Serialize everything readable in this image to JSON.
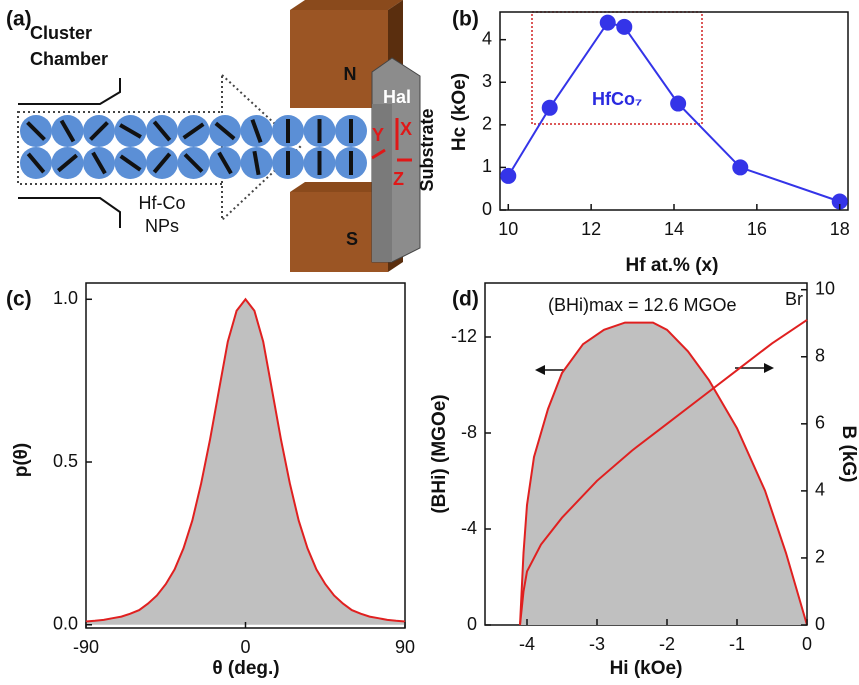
{
  "diagram": {
    "panel": "(a)",
    "chamber": [
      "Cluster",
      "Chamber"
    ],
    "particles": [
      "Hf-Co",
      "NPs"
    ],
    "magnets": [
      "N",
      "S"
    ],
    "substrate": "Substrate",
    "field": "Hal",
    "axes": [
      "X",
      "Y",
      "Z"
    ]
  },
  "chart_data": [
    {
      "panel": "(b)",
      "type": "line",
      "xlabel": "Hf at.% (x)",
      "ylabel": "Hc (kOe)",
      "annotation": "HfCo₇",
      "x": [
        10,
        11,
        12.4,
        12.8,
        14.1,
        15.6,
        18
      ],
      "series": [
        {
          "color": "#3434e8",
          "marker": "circle",
          "values": [
            0.8,
            2.4,
            4.4,
            4.3,
            2.5,
            1.0,
            0.2
          ]
        }
      ],
      "xlim": [
        9.8,
        18.2
      ],
      "ylim": [
        0,
        4.65
      ],
      "xticks": [
        10,
        12,
        14,
        16,
        18
      ],
      "yticks": [
        0,
        1,
        2,
        3,
        4
      ]
    },
    {
      "panel": "(c)",
      "type": "area",
      "xlabel": "θ (deg.)",
      "ylabel": "p(θ)",
      "x": [
        -90,
        -85,
        -80,
        -75,
        -70,
        -65,
        -60,
        -55,
        -50,
        -45,
        -40,
        -35,
        -30,
        -25,
        -20,
        -15,
        -10,
        -5,
        0,
        5,
        10,
        15,
        20,
        25,
        30,
        35,
        40,
        45,
        50,
        55,
        60,
        65,
        70,
        75,
        80,
        85,
        90
      ],
      "series": [
        {
          "color": "#e02020",
          "fill": "#c0c0c0",
          "values": [
            0.01,
            0.012,
            0.015,
            0.02,
            0.025,
            0.034,
            0.045,
            0.065,
            0.09,
            0.125,
            0.17,
            0.235,
            0.32,
            0.435,
            0.57,
            0.72,
            0.87,
            0.965,
            1.0,
            0.965,
            0.87,
            0.72,
            0.57,
            0.435,
            0.32,
            0.235,
            0.17,
            0.125,
            0.09,
            0.065,
            0.045,
            0.034,
            0.025,
            0.02,
            0.015,
            0.012,
            0.01
          ]
        }
      ],
      "xlim": [
        -90,
        90
      ],
      "ylim": [
        -0.01,
        1.05
      ],
      "xticks": [
        -90,
        0,
        90
      ],
      "yticks": [
        {
          "value": 0,
          "label": "0.0"
        },
        {
          "value": 0.5,
          "label": "0.5"
        },
        {
          "value": 1,
          "label": "1.0"
        }
      ]
    },
    {
      "panel": "(d)",
      "type": "line",
      "xlabel": "Hi (kOe)",
      "ylabel": "(BHi) (MGOe)",
      "y2label": "B (kG)",
      "annotation": "(BHi)max = 12.6 MGOe",
      "note": "Br",
      "series": [
        {
          "color": "#e02020",
          "fill": "#c0c0c0",
          "x": [
            -4.1,
            -4.05,
            -4.0,
            -3.9,
            -3.7,
            -3.5,
            -3.2,
            -2.9,
            -2.6,
            -2.2,
            -2.0,
            -1.7,
            -1.4,
            -1.0,
            -0.6,
            -0.3,
            0
          ],
          "values": [
            0,
            -3,
            -5,
            -7,
            -9,
            -10.5,
            -11.7,
            -12.3,
            -12.6,
            -12.6,
            -12.3,
            -11.4,
            -10.2,
            -8.2,
            -5.6,
            -3.0,
            0
          ]
        },
        {
          "color": "#e02020",
          "axis": "y2",
          "x": [
            -4.1,
            -4.05,
            -4.0,
            -3.8,
            -3.5,
            -3.0,
            -2.5,
            -2.0,
            -1.5,
            -1.0,
            -0.5,
            0
          ],
          "values": [
            0,
            1,
            1.6,
            2.4,
            3.2,
            4.3,
            5.2,
            6.0,
            6.8,
            7.6,
            8.4,
            9.1
          ]
        }
      ],
      "xlim": [
        -4.6,
        0
      ],
      "ylim": [
        0,
        -14.25
      ],
      "y2lim": [
        0,
        10.2
      ],
      "xticks": [
        -4,
        -3,
        -2,
        -1,
        0
      ],
      "yticks": [
        0,
        -4,
        -8,
        -12
      ],
      "y2ticks": [
        0,
        2,
        4,
        6,
        8,
        10
      ]
    }
  ]
}
